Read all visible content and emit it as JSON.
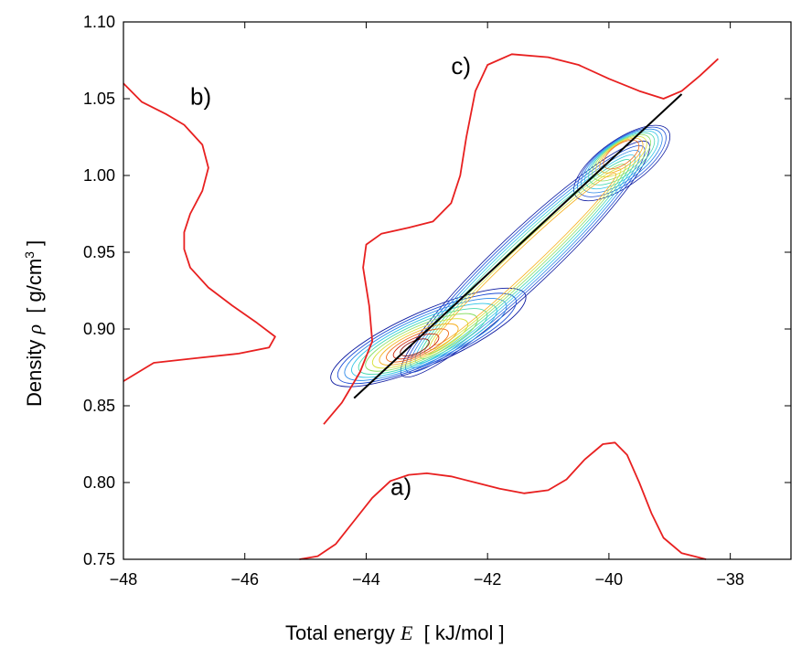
{
  "chart_data": {
    "type": "contour",
    "xlabel": {
      "prefix": "Total energy ",
      "symbol": "E",
      "unit": "  [ kJ/mol ]"
    },
    "ylabel": {
      "prefix": "Density ",
      "symbol": "ρ",
      "unit": "  [ g/cm",
      "sup": "3",
      "close": " ]"
    },
    "xlim": [
      -48,
      -37
    ],
    "ylim": [
      0.75,
      1.1
    ],
    "xticks": [
      -48,
      -46,
      -44,
      -42,
      -40,
      -38
    ],
    "xtick_labels": [
      "−48",
      "−46",
      "−44",
      "−42",
      "−40",
      "−38"
    ],
    "yticks": [
      0.75,
      0.8,
      0.85,
      0.9,
      0.95,
      1.0,
      1.05,
      1.1
    ],
    "ytick_labels": [
      "0.75",
      "0.80",
      "0.85",
      "0.90",
      "0.95",
      "1.00",
      "1.05",
      "1.10"
    ],
    "annotations": [
      {
        "text": "a)",
        "x": -43.6,
        "y": 0.792
      },
      {
        "text": "b)",
        "x": -46.9,
        "y": 1.046
      },
      {
        "text": "c)",
        "x": -42.6,
        "y": 1.066
      }
    ],
    "fit_line": {
      "color": "#000000",
      "points": [
        [
          -44.2,
          0.855
        ],
        [
          -38.8,
          1.053
        ]
      ]
    },
    "energy_distribution": {
      "label": "a)",
      "color": "#e82020",
      "points": [
        [
          -45.1,
          0.75
        ],
        [
          -44.8,
          0.752
        ],
        [
          -44.5,
          0.76
        ],
        [
          -44.2,
          0.775
        ],
        [
          -43.9,
          0.79
        ],
        [
          -43.6,
          0.801
        ],
        [
          -43.3,
          0.805
        ],
        [
          -43.0,
          0.806
        ],
        [
          -42.6,
          0.804
        ],
        [
          -42.2,
          0.8
        ],
        [
          -41.8,
          0.796
        ],
        [
          -41.4,
          0.793
        ],
        [
          -41.0,
          0.795
        ],
        [
          -40.7,
          0.802
        ],
        [
          -40.4,
          0.815
        ],
        [
          -40.1,
          0.825
        ],
        [
          -39.9,
          0.826
        ],
        [
          -39.7,
          0.818
        ],
        [
          -39.5,
          0.8
        ],
        [
          -39.3,
          0.78
        ],
        [
          -39.1,
          0.764
        ],
        [
          -38.8,
          0.754
        ],
        [
          -38.4,
          0.75
        ]
      ]
    },
    "density_distribution": {
      "label": "b)",
      "color": "#e82020",
      "points": [
        [
          -48.0,
          1.06
        ],
        [
          -47.7,
          1.048
        ],
        [
          -47.3,
          1.04
        ],
        [
          -47.0,
          1.033
        ],
        [
          -46.7,
          1.02
        ],
        [
          -46.6,
          1.005
        ],
        [
          -46.7,
          0.99
        ],
        [
          -46.9,
          0.975
        ],
        [
          -47.0,
          0.963
        ],
        [
          -47.0,
          0.952
        ],
        [
          -46.9,
          0.94
        ],
        [
          -46.6,
          0.927
        ],
        [
          -46.2,
          0.915
        ],
        [
          -45.8,
          0.904
        ],
        [
          -45.5,
          0.895
        ],
        [
          -45.6,
          0.888
        ],
        [
          -46.1,
          0.884
        ],
        [
          -46.8,
          0.881
        ],
        [
          -47.5,
          0.878
        ],
        [
          -48.0,
          0.866
        ]
      ]
    },
    "diagonal_distribution": {
      "label": "c)",
      "color": "#e82020",
      "points": [
        [
          -44.7,
          0.838
        ],
        [
          -44.4,
          0.852
        ],
        [
          -44.1,
          0.872
        ],
        [
          -43.9,
          0.892
        ],
        [
          -43.95,
          0.915
        ],
        [
          -44.05,
          0.94
        ],
        [
          -44.0,
          0.955
        ],
        [
          -43.75,
          0.962
        ],
        [
          -43.3,
          0.966
        ],
        [
          -42.9,
          0.97
        ],
        [
          -42.6,
          0.982
        ],
        [
          -42.45,
          1.0
        ],
        [
          -42.35,
          1.025
        ],
        [
          -42.2,
          1.055
        ],
        [
          -42.0,
          1.072
        ],
        [
          -41.6,
          1.079
        ],
        [
          -41.0,
          1.077
        ],
        [
          -40.5,
          1.072
        ],
        [
          -40.0,
          1.063
        ],
        [
          -39.5,
          1.055
        ],
        [
          -39.1,
          1.05
        ],
        [
          -38.8,
          1.055
        ],
        [
          -38.5,
          1.065
        ],
        [
          -38.2,
          1.076
        ]
      ]
    },
    "contours": {
      "colormap": [
        "#0d1aa0",
        "#1f4fd6",
        "#2c88e8",
        "#2fc4e6",
        "#48d9b0",
        "#8be06a",
        "#d8e13c",
        "#f6b021",
        "#ee6a16",
        "#cc2810",
        "#8a1008"
      ],
      "levels": 11,
      "peaks": [
        {
          "x": -43.2,
          "y": 0.888,
          "height": 1.0
        },
        {
          "x": -39.8,
          "y": 1.015,
          "height": 0.58
        }
      ]
    }
  }
}
